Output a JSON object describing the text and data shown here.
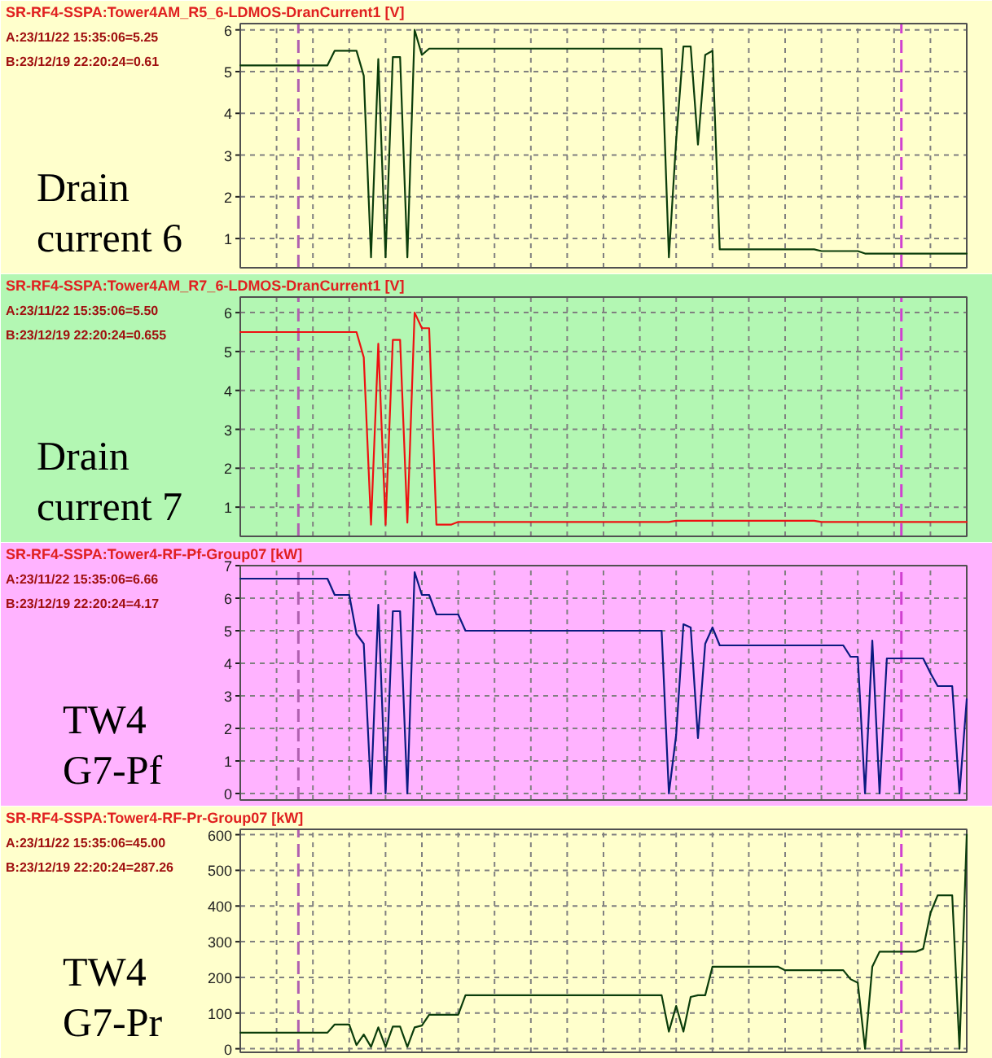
{
  "chart_data": [
    {
      "type": "line",
      "title": "SR-RF4-SSPA:Tower4AM_R5_6-LDMOS-DranCurrent1 [V]",
      "annotations": [
        "A:23/11/22 15:35:06=5.25",
        "B:23/12/19 22:20:24=0.61",
        "Drain\ncurrent 6"
      ],
      "categories": [
        null,
        null,
        null,
        null,
        null,
        null,
        null,
        null,
        null,
        null,
        null,
        null,
        null,
        null,
        null,
        null,
        null,
        null,
        null,
        null,
        null,
        null,
        null,
        null,
        null,
        null,
        null,
        null,
        null,
        null,
        null,
        null,
        null,
        null,
        null,
        null,
        null,
        null,
        null,
        null,
        null,
        null,
        null,
        null,
        null,
        null,
        null,
        null,
        null,
        null,
        null,
        null,
        null,
        null,
        null,
        null,
        null,
        null,
        null,
        null,
        null,
        null,
        null,
        null,
        null,
        null,
        null,
        null,
        null,
        null,
        null,
        null,
        null,
        null,
        null,
        null,
        null,
        null,
        null,
        null,
        null,
        null,
        null,
        null,
        null,
        null,
        null,
        null,
        null,
        null,
        null,
        null,
        null,
        null,
        null,
        null,
        null,
        null,
        null,
        null,
        null
      ],
      "series": [
        {
          "color": "#0b3d0b",
          "values": [
            5.15,
            5.15,
            5.15,
            5.15,
            5.15,
            5.15,
            5.15,
            5.15,
            5.15,
            5.15,
            5.15,
            5.15,
            5.15,
            5.5,
            5.5,
            5.5,
            5.5,
            4.9,
            0.55,
            5.3,
            0.55,
            5.35,
            5.35,
            0.55,
            6.0,
            5.4,
            5.55,
            5.55,
            5.55,
            5.55,
            5.55,
            5.55,
            5.55,
            5.55,
            5.55,
            5.55,
            5.55,
            5.55,
            5.55,
            5.55,
            5.55,
            5.55,
            5.55,
            5.55,
            5.55,
            5.55,
            5.55,
            5.55,
            5.55,
            5.55,
            5.55,
            5.55,
            5.55,
            5.55,
            5.55,
            5.55,
            5.55,
            5.55,
            5.55,
            0.55,
            3.35,
            5.6,
            5.6,
            3.25,
            5.4,
            5.5,
            0.74,
            0.74,
            0.74,
            0.74,
            0.74,
            0.74,
            0.74,
            0.74,
            0.74,
            0.74,
            0.74,
            0.74,
            0.74,
            0.74,
            0.7,
            0.7,
            0.7,
            0.7,
            0.7,
            0.7,
            0.64,
            0.64,
            0.64,
            0.64,
            0.64,
            0.64,
            0.64,
            0.64,
            0.64,
            0.64,
            0.64,
            0.64,
            0.64,
            0.64,
            0.64
          ]
        }
      ],
      "ylim": [
        0.3,
        6.15
      ],
      "yticks": [
        1,
        2,
        3,
        4,
        5,
        6
      ],
      "grid": true,
      "tick_labels": "y"
    },
    {
      "type": "line",
      "title": "SR-RF4-SSPA:Tower4AM_R7_6-LDMOS-DranCurrent1 [V]",
      "annotations": [
        "A:23/11/22 15:35:06=5.50",
        "B:23/12/19 22:20:24=0.655",
        "Drain\ncurrent 7"
      ],
      "categories": [
        null,
        null,
        null,
        null,
        null,
        null,
        null,
        null,
        null,
        null,
        null,
        null,
        null,
        null,
        null,
        null,
        null,
        null,
        null,
        null,
        null,
        null,
        null,
        null,
        null,
        null,
        null,
        null,
        null,
        null,
        null,
        null,
        null,
        null,
        null,
        null,
        null,
        null,
        null,
        null,
        null,
        null,
        null,
        null,
        null,
        null,
        null,
        null,
        null,
        null,
        null,
        null,
        null,
        null,
        null,
        null,
        null,
        null,
        null,
        null,
        null,
        null,
        null,
        null,
        null,
        null,
        null,
        null,
        null,
        null,
        null,
        null,
        null,
        null,
        null,
        null,
        null,
        null,
        null,
        null,
        null,
        null,
        null,
        null,
        null,
        null,
        null,
        null,
        null,
        null,
        null,
        null,
        null,
        null,
        null,
        null,
        null,
        null,
        null,
        null,
        null
      ],
      "series": [
        {
          "color": "#ee1111",
          "values": [
            5.5,
            5.5,
            5.5,
            5.5,
            5.5,
            5.5,
            5.5,
            5.5,
            5.5,
            5.5,
            5.5,
            5.5,
            5.5,
            5.5,
            5.5,
            5.5,
            5.5,
            4.85,
            0.55,
            5.2,
            0.55,
            5.3,
            5.3,
            0.6,
            6.0,
            5.6,
            5.6,
            0.55,
            0.55,
            0.55,
            0.62,
            0.62,
            0.62,
            0.62,
            0.62,
            0.62,
            0.62,
            0.62,
            0.62,
            0.62,
            0.62,
            0.62,
            0.62,
            0.62,
            0.62,
            0.62,
            0.62,
            0.62,
            0.62,
            0.62,
            0.62,
            0.62,
            0.62,
            0.62,
            0.62,
            0.62,
            0.62,
            0.62,
            0.62,
            0.62,
            0.65,
            0.65,
            0.65,
            0.65,
            0.65,
            0.65,
            0.65,
            0.65,
            0.65,
            0.65,
            0.65,
            0.65,
            0.65,
            0.65,
            0.65,
            0.65,
            0.65,
            0.65,
            0.65,
            0.65,
            0.62,
            0.62,
            0.62,
            0.62,
            0.62,
            0.62,
            0.62,
            0.62,
            0.62,
            0.62,
            0.62,
            0.62,
            0.62,
            0.62,
            0.62,
            0.62,
            0.62,
            0.62,
            0.62,
            0.62,
            0.62
          ]
        }
      ],
      "ylim": [
        0.25,
        6.4
      ],
      "yticks": [
        1,
        2,
        3,
        4,
        5,
        6
      ],
      "grid": true,
      "tick_labels": "y"
    },
    {
      "type": "line",
      "title": "SR-RF4-SSPA:Tower4-RF-Pf-Group07 [kW]",
      "annotations": [
        "A:23/11/22 15:35:06=6.66",
        "B:23/12/19 22:20:24=4.17",
        "TW4\nG7-Pf"
      ],
      "categories": [
        null,
        null,
        null,
        null,
        null,
        null,
        null,
        null,
        null,
        null,
        null,
        null,
        null,
        null,
        null,
        null,
        null,
        null,
        null,
        null,
        null,
        null,
        null,
        null,
        null,
        null,
        null,
        null,
        null,
        null,
        null,
        null,
        null,
        null,
        null,
        null,
        null,
        null,
        null,
        null,
        null,
        null,
        null,
        null,
        null,
        null,
        null,
        null,
        null,
        null,
        null,
        null,
        null,
        null,
        null,
        null,
        null,
        null,
        null,
        null,
        null,
        null,
        null,
        null,
        null,
        null,
        null,
        null,
        null,
        null,
        null,
        null,
        null,
        null,
        null,
        null,
        null,
        null,
        null,
        null,
        null,
        null,
        null,
        null,
        null,
        null,
        null,
        null,
        null,
        null,
        null,
        null,
        null,
        null,
        null,
        null,
        null,
        null,
        null,
        null,
        null
      ],
      "series": [
        {
          "color": "#0a1a80",
          "values": [
            6.6,
            6.6,
            6.6,
            6.6,
            6.6,
            6.6,
            6.6,
            6.6,
            6.6,
            6.6,
            6.6,
            6.6,
            6.6,
            6.1,
            6.1,
            6.1,
            4.9,
            4.6,
            0,
            5.8,
            0,
            5.6,
            5.6,
            0,
            6.8,
            6.1,
            6.1,
            5.5,
            5.5,
            5.5,
            5.5,
            5.0,
            5.0,
            5.0,
            5.0,
            5.0,
            5.0,
            5.0,
            5.0,
            5.0,
            5.0,
            5.0,
            5.0,
            5.0,
            5.0,
            5.0,
            5.0,
            5.0,
            5.0,
            5.0,
            5.0,
            5.0,
            5.0,
            5.0,
            5.0,
            5.0,
            5.0,
            5.0,
            5.0,
            0,
            1.8,
            5.2,
            5.1,
            1.7,
            4.6,
            5.1,
            4.55,
            4.55,
            4.55,
            4.55,
            4.55,
            4.55,
            4.55,
            4.55,
            4.55,
            4.55,
            4.55,
            4.55,
            4.55,
            4.55,
            4.55,
            4.55,
            4.55,
            4.55,
            4.2,
            4.2,
            0,
            4.7,
            0,
            4.15,
            4.15,
            4.15,
            4.15,
            4.15,
            4.15,
            3.7,
            3.3,
            3.3,
            3.3,
            0,
            2.9
          ]
        }
      ],
      "ylim": [
        -0.2,
        7
      ],
      "yticks": [
        0,
        1,
        2,
        3,
        4,
        5,
        6,
        7
      ],
      "grid": true,
      "tick_labels": "y"
    },
    {
      "type": "line",
      "title": "SR-RF4-SSPA:Tower4-RF-Pr-Group07 [kW]",
      "annotations": [
        "A:23/11/22 15:35:06=45.00",
        "B:23/12/19 22:20:24=287.26",
        "TW4\nG7-Pr"
      ],
      "categories": [
        null,
        null,
        null,
        null,
        null,
        null,
        null,
        null,
        null,
        null,
        null,
        null,
        null,
        null,
        null,
        null,
        null,
        null,
        null,
        null,
        null,
        null,
        null,
        null,
        null,
        null,
        null,
        null,
        null,
        null,
        null,
        null,
        null,
        null,
        null,
        null,
        null,
        null,
        null,
        null,
        null,
        null,
        null,
        null,
        null,
        null,
        null,
        null,
        null,
        null,
        null,
        null,
        null,
        null,
        null,
        null,
        null,
        null,
        null,
        null,
        null,
        null,
        null,
        null,
        null,
        null,
        null,
        null,
        null,
        null,
        null,
        null,
        null,
        null,
        null,
        null,
        null,
        null,
        null,
        null,
        null,
        null,
        null,
        null,
        null,
        null,
        null,
        null,
        null,
        null,
        null,
        null,
        null,
        null,
        null,
        null,
        null,
        null,
        null,
        null,
        null
      ],
      "series": [
        {
          "color": "#0b3d0b",
          "values": [
            45,
            45,
            45,
            45,
            45,
            45,
            45,
            45,
            45,
            45,
            45,
            45,
            45,
            68,
            68,
            68,
            10,
            40,
            5,
            60,
            5,
            62,
            62,
            5,
            60,
            65,
            95,
            95,
            95,
            95,
            95,
            150,
            150,
            150,
            150,
            150,
            150,
            150,
            150,
            150,
            150,
            150,
            150,
            150,
            150,
            150,
            150,
            150,
            150,
            150,
            150,
            150,
            150,
            150,
            150,
            150,
            150,
            150,
            150,
            48,
            120,
            48,
            145,
            150,
            150,
            230,
            230,
            230,
            230,
            230,
            230,
            230,
            230,
            230,
            230,
            220,
            220,
            220,
            220,
            220,
            220,
            220,
            220,
            220,
            195,
            185,
            0,
            230,
            272,
            272,
            272,
            272,
            272,
            272,
            280,
            380,
            430,
            430,
            430,
            0,
            600
          ]
        }
      ],
      "ylim": [
        -10,
        615
      ],
      "yticks": [
        0,
        100,
        200,
        300,
        400,
        500,
        600
      ],
      "grid": true,
      "tick_labels": "y"
    }
  ]
}
